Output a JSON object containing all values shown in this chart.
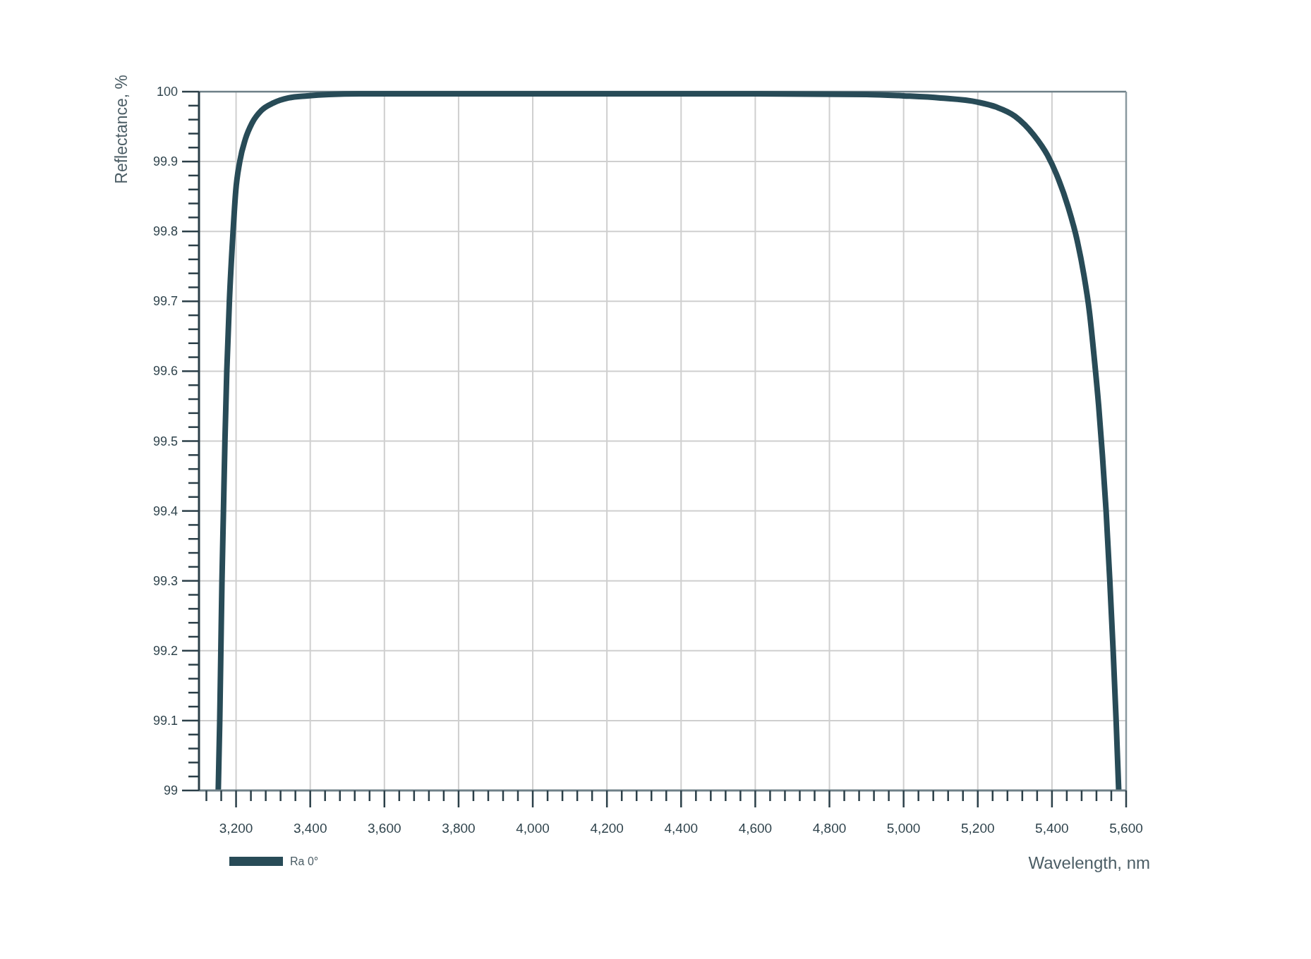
{
  "chart_data": {
    "type": "line",
    "xlabel": "Wavelength, nm",
    "ylabel": "Reflectance, %",
    "x": [
      3152,
      3156,
      3159,
      3162,
      3166,
      3170,
      3175,
      3182,
      3192,
      3199,
      3210,
      3225,
      3243,
      3268,
      3301,
      3341,
      3392,
      3450,
      3550,
      3800,
      4200,
      4600,
      4900,
      5000,
      5100,
      5200,
      5250,
      5300,
      5351,
      5388,
      5412,
      5443,
      5468,
      5486,
      5501,
      5514,
      5526,
      5536,
      5546,
      5556,
      5565,
      5573,
      5580
    ],
    "series": [
      {
        "name": "Ra 0°",
        "color": "#284b57",
        "values": [
          99.0,
          99.1,
          99.2,
          99.3,
          99.4,
          99.5,
          99.6,
          99.7,
          99.8,
          99.857,
          99.9,
          99.932,
          99.955,
          99.973,
          99.984,
          99.991,
          99.994,
          99.996,
          99.997,
          99.997,
          99.997,
          99.997,
          99.996,
          99.994,
          99.991,
          99.985,
          99.978,
          99.965,
          99.938,
          99.909,
          99.882,
          99.836,
          99.787,
          99.738,
          99.685,
          99.619,
          99.55,
          99.48,
          99.4,
          99.3,
          99.2,
          99.1,
          99.0
        ]
      }
    ],
    "xlim": [
      3100,
      5600
    ],
    "xticks": [
      {
        "value": 3120,
        "label": null
      },
      {
        "value": 3160,
        "label": null
      },
      {
        "value": 3200,
        "label": "3,200"
      },
      {
        "value": 3240,
        "label": null
      },
      {
        "value": 3280,
        "label": null
      },
      {
        "value": 3320,
        "label": null
      },
      {
        "value": 3360,
        "label": null
      },
      {
        "value": 3400,
        "label": "3,400"
      },
      {
        "value": 3440,
        "label": null
      },
      {
        "value": 3480,
        "label": null
      },
      {
        "value": 3520,
        "label": null
      },
      {
        "value": 3560,
        "label": null
      },
      {
        "value": 3600,
        "label": "3,600"
      },
      {
        "value": 3640,
        "label": null
      },
      {
        "value": 3680,
        "label": null
      },
      {
        "value": 3720,
        "label": null
      },
      {
        "value": 3760,
        "label": null
      },
      {
        "value": 3800,
        "label": "3,800"
      },
      {
        "value": 3840,
        "label": null
      },
      {
        "value": 3880,
        "label": null
      },
      {
        "value": 3920,
        "label": null
      },
      {
        "value": 3960,
        "label": null
      },
      {
        "value": 4000,
        "label": "4,000"
      },
      {
        "value": 4040,
        "label": null
      },
      {
        "value": 4080,
        "label": null
      },
      {
        "value": 4120,
        "label": null
      },
      {
        "value": 4160,
        "label": null
      },
      {
        "value": 4200,
        "label": "4,200"
      },
      {
        "value": 4240,
        "label": null
      },
      {
        "value": 4280,
        "label": null
      },
      {
        "value": 4320,
        "label": null
      },
      {
        "value": 4360,
        "label": null
      },
      {
        "value": 4400,
        "label": "4,400"
      },
      {
        "value": 4440,
        "label": null
      },
      {
        "value": 4480,
        "label": null
      },
      {
        "value": 4520,
        "label": null
      },
      {
        "value": 4560,
        "label": null
      },
      {
        "value": 4600,
        "label": "4,600"
      },
      {
        "value": 4640,
        "label": null
      },
      {
        "value": 4680,
        "label": null
      },
      {
        "value": 4720,
        "label": null
      },
      {
        "value": 4760,
        "label": null
      },
      {
        "value": 4800,
        "label": "4,800"
      },
      {
        "value": 4840,
        "label": null
      },
      {
        "value": 4880,
        "label": null
      },
      {
        "value": 4920,
        "label": null
      },
      {
        "value": 4960,
        "label": null
      },
      {
        "value": 5000,
        "label": "5,000"
      },
      {
        "value": 5040,
        "label": null
      },
      {
        "value": 5080,
        "label": null
      },
      {
        "value": 5120,
        "label": null
      },
      {
        "value": 5160,
        "label": null
      },
      {
        "value": 5200,
        "label": "5,200"
      },
      {
        "value": 5240,
        "label": null
      },
      {
        "value": 5280,
        "label": null
      },
      {
        "value": 5320,
        "label": null
      },
      {
        "value": 5360,
        "label": null
      },
      {
        "value": 5400,
        "label": "5,400"
      },
      {
        "value": 5440,
        "label": null
      },
      {
        "value": 5480,
        "label": null
      },
      {
        "value": 5520,
        "label": null
      },
      {
        "value": 5560,
        "label": null
      },
      {
        "value": 5600,
        "label": "5,600"
      }
    ],
    "ylim": [
      99,
      100
    ],
    "yticks": [
      99,
      {
        "value": 99.02,
        "label": null
      },
      {
        "value": 99.04,
        "label": null
      },
      {
        "value": 99.06,
        "label": null
      },
      {
        "value": 99.08,
        "label": null
      },
      99.1,
      {
        "value": 99.12,
        "label": null
      },
      {
        "value": 99.14,
        "label": null
      },
      {
        "value": 99.16,
        "label": null
      },
      {
        "value": 99.18,
        "label": null
      },
      99.2,
      {
        "value": 99.22,
        "label": null
      },
      {
        "value": 99.24,
        "label": null
      },
      {
        "value": 99.26,
        "label": null
      },
      {
        "value": 99.28,
        "label": null
      },
      99.3,
      {
        "value": 99.32,
        "label": null
      },
      {
        "value": 99.34,
        "label": null
      },
      {
        "value": 99.36,
        "label": null
      },
      {
        "value": 99.38,
        "label": null
      },
      99.4,
      {
        "value": 99.42,
        "label": null
      },
      {
        "value": 99.44,
        "label": null
      },
      {
        "value": 99.46,
        "label": null
      },
      {
        "value": 99.48,
        "label": null
      },
      99.5,
      {
        "value": 99.52,
        "label": null
      },
      {
        "value": 99.54,
        "label": null
      },
      {
        "value": 99.56,
        "label": null
      },
      {
        "value": 99.58,
        "label": null
      },
      99.6,
      {
        "value": 99.62,
        "label": null
      },
      {
        "value": 99.64,
        "label": null
      },
      {
        "value": 99.66,
        "label": null
      },
      {
        "value": 99.68,
        "label": null
      },
      99.7,
      {
        "value": 99.72,
        "label": null
      },
      {
        "value": 99.74,
        "label": null
      },
      {
        "value": 99.76,
        "label": null
      },
      {
        "value": 99.78,
        "label": null
      },
      99.8,
      {
        "value": 99.82,
        "label": null
      },
      {
        "value": 99.84,
        "label": null
      },
      {
        "value": 99.86,
        "label": null
      },
      {
        "value": 99.88,
        "label": null
      },
      99.9,
      {
        "value": 99.92,
        "label": null
      },
      {
        "value": 99.94,
        "label": null
      },
      {
        "value": 99.96,
        "label": null
      },
      {
        "value": 99.98,
        "label": null
      },
      100
    ],
    "grid": true,
    "legend": "bottom left"
  }
}
